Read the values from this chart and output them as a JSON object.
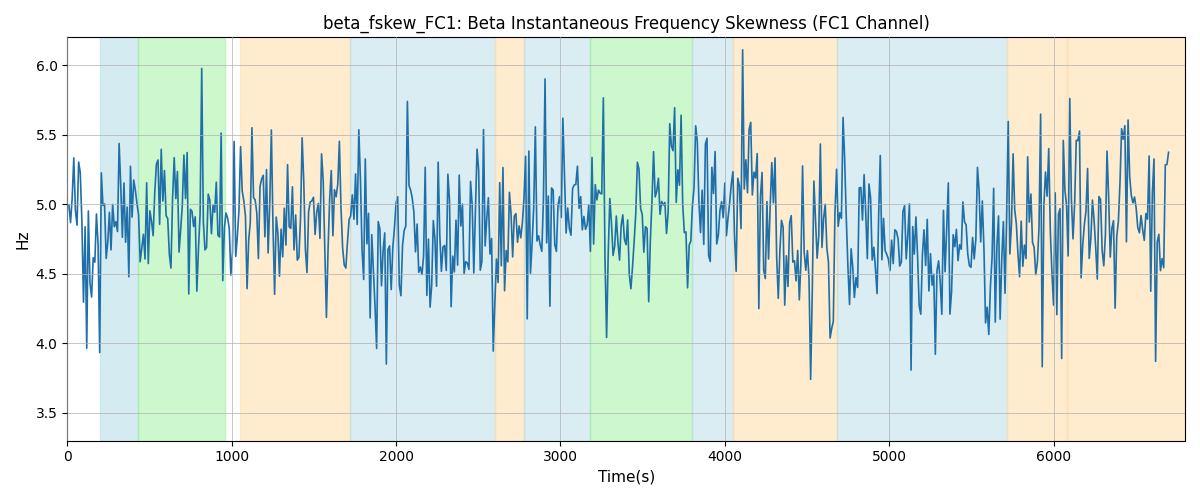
{
  "title": "beta_fskew_FC1: Beta Instantaneous Frequency Skewness (FC1 Channel)",
  "xlabel": "Time(s)",
  "ylabel": "Hz",
  "xlim": [
    0,
    6800
  ],
  "ylim": [
    3.3,
    6.2
  ],
  "yticks": [
    3.5,
    4.0,
    4.5,
    5.0,
    5.5,
    6.0
  ],
  "xticks": [
    0,
    1000,
    2000,
    3000,
    4000,
    5000,
    6000
  ],
  "line_color": "#1f6fa8",
  "line_width": 1.2,
  "bg_color": "#ffffff",
  "grid_color": "#b0b0b0",
  "regions": [
    {
      "start": 200,
      "end": 430,
      "color": "#add8e6",
      "alpha": 0.5
    },
    {
      "start": 430,
      "end": 960,
      "color": "#90ee90",
      "alpha": 0.45
    },
    {
      "start": 1050,
      "end": 1720,
      "color": "#ffdead",
      "alpha": 0.6
    },
    {
      "start": 1720,
      "end": 2600,
      "color": "#add8e6",
      "alpha": 0.45
    },
    {
      "start": 2600,
      "end": 2780,
      "color": "#ffdead",
      "alpha": 0.6
    },
    {
      "start": 2780,
      "end": 3180,
      "color": "#add8e6",
      "alpha": 0.45
    },
    {
      "start": 3180,
      "end": 3800,
      "color": "#90ee90",
      "alpha": 0.45
    },
    {
      "start": 3800,
      "end": 4050,
      "color": "#add8e6",
      "alpha": 0.45
    },
    {
      "start": 4050,
      "end": 4680,
      "color": "#ffdead",
      "alpha": 0.6
    },
    {
      "start": 4680,
      "end": 5720,
      "color": "#add8e6",
      "alpha": 0.45
    },
    {
      "start": 5720,
      "end": 6080,
      "color": "#ffdead",
      "alpha": 0.6
    },
    {
      "start": 6080,
      "end": 6800,
      "color": "#ffdead",
      "alpha": 0.6
    }
  ],
  "seed": 42,
  "n_points": 680,
  "mean": 4.85,
  "std": 0.28,
  "figsize": [
    12,
    5
  ],
  "dpi": 100
}
